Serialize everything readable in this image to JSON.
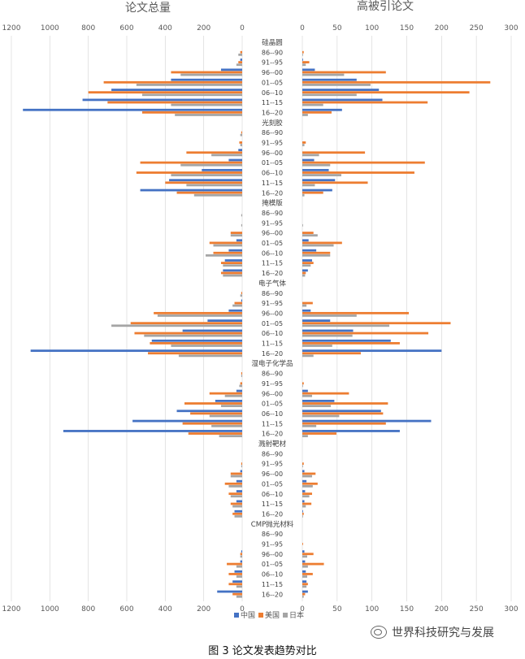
{
  "figure_caption": "图 3 论文发表趋势对比",
  "watermark": "世界科技研究与发展",
  "colors": {
    "中国": "#4472C4",
    "美国": "#ED7D31",
    "日本": "#A5A5A5",
    "text": "#595959",
    "grid": "#D9D9D9"
  },
  "chart_data": [
    {
      "type": "bar",
      "orientation": "horizontal",
      "title": "论文总量",
      "xlim": [
        0,
        1200
      ],
      "x_direction": "reversed",
      "xticks": [
        1200,
        1000,
        800,
        600,
        400,
        200,
        0
      ],
      "grid": true,
      "legend": "bottom",
      "groups": [
        {
          "name": "硅晶圆",
          "categories": [
            "86--90",
            "91--95",
            "96--00",
            "01--05",
            "06--10",
            "11--15",
            "16--20"
          ],
          "series": [
            {
              "name": "中国",
              "values": [
                0,
                10,
                110,
                370,
                680,
                830,
                1140
              ]
            },
            {
              "name": "美国",
              "values": [
                10,
                20,
                370,
                720,
                800,
                700,
                520
              ]
            },
            {
              "name": "日本",
              "values": [
                20,
                30,
                320,
                550,
                520,
                370,
                350
              ]
            }
          ]
        },
        {
          "name": "光刻胶",
          "categories": [
            "86--90",
            "91--95",
            "96--00",
            "01--05",
            "06--10",
            "11--15",
            "16--20"
          ],
          "series": [
            {
              "name": "中国",
              "values": [
                0,
                0,
                20,
                70,
                210,
                380,
                530
              ]
            },
            {
              "name": "美国",
              "values": [
                5,
                15,
                290,
                530,
                550,
                400,
                340
              ]
            },
            {
              "name": "日本",
              "values": [
                10,
                10,
                160,
                320,
                370,
                290,
                250
              ]
            }
          ]
        },
        {
          "name": "掩模版",
          "categories": [
            "86--90",
            "91--95",
            "96--00",
            "01--05",
            "06--10",
            "11--15",
            "16--20"
          ],
          "series": [
            {
              "name": "中国",
              "values": [
                0,
                0,
                0,
                30,
                70,
                90,
                100
              ]
            },
            {
              "name": "美国",
              "values": [
                0,
                0,
                60,
                170,
                150,
                110,
                110
              ]
            },
            {
              "name": "日本",
              "values": [
                5,
                5,
                60,
                150,
                190,
                100,
                100
              ]
            }
          ]
        },
        {
          "name": "电子气体",
          "categories": [
            "86--90",
            "91--95",
            "96--00",
            "01--05",
            "06--10",
            "11--15",
            "16--20"
          ],
          "series": [
            {
              "name": "中国",
              "values": [
                0,
                5,
                70,
                180,
                310,
                470,
                1100
              ]
            },
            {
              "name": "美国",
              "values": [
                5,
                40,
                460,
                580,
                560,
                480,
                490
              ]
            },
            {
              "name": "日本",
              "values": [
                10,
                50,
                440,
                680,
                510,
                370,
                330
              ]
            }
          ]
        },
        {
          "name": "湿电子化学品",
          "categories": [
            "86--90",
            "91--95",
            "96--00",
            "01--05",
            "06--10",
            "11--15",
            "16--20"
          ],
          "series": [
            {
              "name": "中国",
              "values": [
                0,
                0,
                30,
                140,
                340,
                570,
                930
              ]
            },
            {
              "name": "美国",
              "values": [
                5,
                10,
                170,
                300,
                270,
                310,
                280
              ]
            },
            {
              "name": "日本",
              "values": [
                5,
                15,
                90,
                110,
                170,
                160,
                120
              ]
            }
          ]
        },
        {
          "name": "溅射靶材",
          "categories": [
            "86--90",
            "91--95",
            "96--00",
            "01--05",
            "06--10",
            "11--15",
            "16--20"
          ],
          "series": [
            {
              "name": "中国",
              "values": [
                0,
                0,
                10,
                30,
                30,
                30,
                40
              ]
            },
            {
              "name": "美国",
              "values": [
                0,
                5,
                60,
                90,
                70,
                60,
                50
              ]
            },
            {
              "name": "日本",
              "values": [
                0,
                5,
                60,
                70,
                60,
                50,
                40
              ]
            }
          ]
        },
        {
          "name": "CMP抛光材料",
          "categories": [
            "86--90",
            "91--95",
            "96--00",
            "01--05",
            "06--10",
            "11--15",
            "16--20"
          ],
          "series": [
            {
              "name": "中国",
              "values": [
                0,
                0,
                5,
                10,
                40,
                50,
                130
              ]
            },
            {
              "name": "美国",
              "values": [
                0,
                0,
                10,
                80,
                70,
                70,
                50
              ]
            },
            {
              "name": "日本",
              "values": [
                0,
                0,
                10,
                30,
                30,
                30,
                30
              ]
            }
          ]
        }
      ]
    },
    {
      "type": "bar",
      "orientation": "horizontal",
      "title": "高被引论文",
      "xlim": [
        0,
        300
      ],
      "xticks": [
        0,
        50,
        100,
        150,
        200,
        250,
        300
      ],
      "grid": true,
      "legend": "bottom",
      "groups": [
        {
          "name": "硅晶圆",
          "categories": [
            "86--90",
            "91--95",
            "96--00",
            "01--05",
            "06--10",
            "11--15",
            "16--20"
          ],
          "series": [
            {
              "name": "中国",
              "values": [
                0,
                1,
                18,
                78,
                110,
                115,
                57
              ]
            },
            {
              "name": "美国",
              "values": [
                2,
                10,
                120,
                270,
                240,
                180,
                42
              ]
            },
            {
              "name": "日本",
              "values": [
                1,
                5,
                60,
                98,
                78,
                30,
                8
              ]
            }
          ]
        },
        {
          "name": "光刻胶",
          "categories": [
            "86--90",
            "91--95",
            "96--00",
            "01--05",
            "06--10",
            "11--15",
            "16--20"
          ],
          "series": [
            {
              "name": "中国",
              "values": [
                0,
                0,
                0,
                17,
                38,
                47,
                43
              ]
            },
            {
              "name": "美国",
              "values": [
                0,
                5,
                90,
                176,
                161,
                94,
                30
              ]
            },
            {
              "name": "日本",
              "values": [
                0,
                3,
                24,
                40,
                56,
                18,
                3
              ]
            }
          ]
        },
        {
          "name": "掩模版",
          "categories": [
            "86--90",
            "91--95",
            "96--00",
            "01--05",
            "06--10",
            "11--15",
            "16--20"
          ],
          "series": [
            {
              "name": "中国",
              "values": [
                0,
                0,
                0,
                9,
                20,
                14,
                8
              ]
            },
            {
              "name": "美国",
              "values": [
                0,
                0,
                16,
                57,
                40,
                16,
                5
              ]
            },
            {
              "name": "日本",
              "values": [
                0,
                1,
                22,
                45,
                40,
                12,
                4
              ]
            }
          ]
        },
        {
          "name": "电子气体",
          "categories": [
            "86--90",
            "91--95",
            "96--00",
            "01--05",
            "06--10",
            "11--15",
            "16--20"
          ],
          "series": [
            {
              "name": "中国",
              "values": [
                0,
                0,
                12,
                40,
                73,
                127,
                200
              ]
            },
            {
              "name": "美国",
              "values": [
                0,
                15,
                153,
                213,
                181,
                140,
                84
              ]
            },
            {
              "name": "日本",
              "values": [
                0,
                6,
                78,
                125,
                72,
                43,
                16
              ]
            }
          ]
        },
        {
          "name": "湿电子化学品",
          "categories": [
            "86--90",
            "91--95",
            "96--00",
            "01--05",
            "06--10",
            "11--15",
            "16--20"
          ],
          "series": [
            {
              "name": "中国",
              "values": [
                0,
                0,
                8,
                46,
                113,
                185,
                140
              ]
            },
            {
              "name": "美国",
              "values": [
                0,
                2,
                67,
                123,
                116,
                120,
                49
              ]
            },
            {
              "name": "日本",
              "values": [
                0,
                1,
                14,
                41,
                53,
                20,
                8
              ]
            }
          ]
        },
        {
          "name": "溅射靶材",
          "categories": [
            "86--90",
            "91--95",
            "96--00",
            "01--05",
            "06--10",
            "11--15",
            "16--20"
          ],
          "series": [
            {
              "name": "中国",
              "values": [
                0,
                0,
                3,
                6,
                4,
                3,
                1
              ]
            },
            {
              "name": "美国",
              "values": [
                0,
                2,
                19,
                22,
                14,
                13,
                2
              ]
            },
            {
              "name": "日本",
              "values": [
                0,
                1,
                14,
                15,
                10,
                5,
                1
              ]
            }
          ]
        },
        {
          "name": "CMP抛光材料",
          "categories": [
            "86--90",
            "91--95",
            "96--00",
            "01--05",
            "06--10",
            "11--15",
            "16--20"
          ],
          "series": [
            {
              "name": "中国",
              "values": [
                0,
                0,
                3,
                4,
                5,
                6,
                8
              ]
            },
            {
              "name": "美国",
              "values": [
                0,
                1,
                16,
                31,
                15,
                8,
                4
              ]
            },
            {
              "name": "日本",
              "values": [
                0,
                0,
                7,
                8,
                7,
                6,
                2
              ]
            }
          ]
        }
      ]
    }
  ],
  "legend_items": [
    "中国",
    "美国",
    "日本"
  ]
}
